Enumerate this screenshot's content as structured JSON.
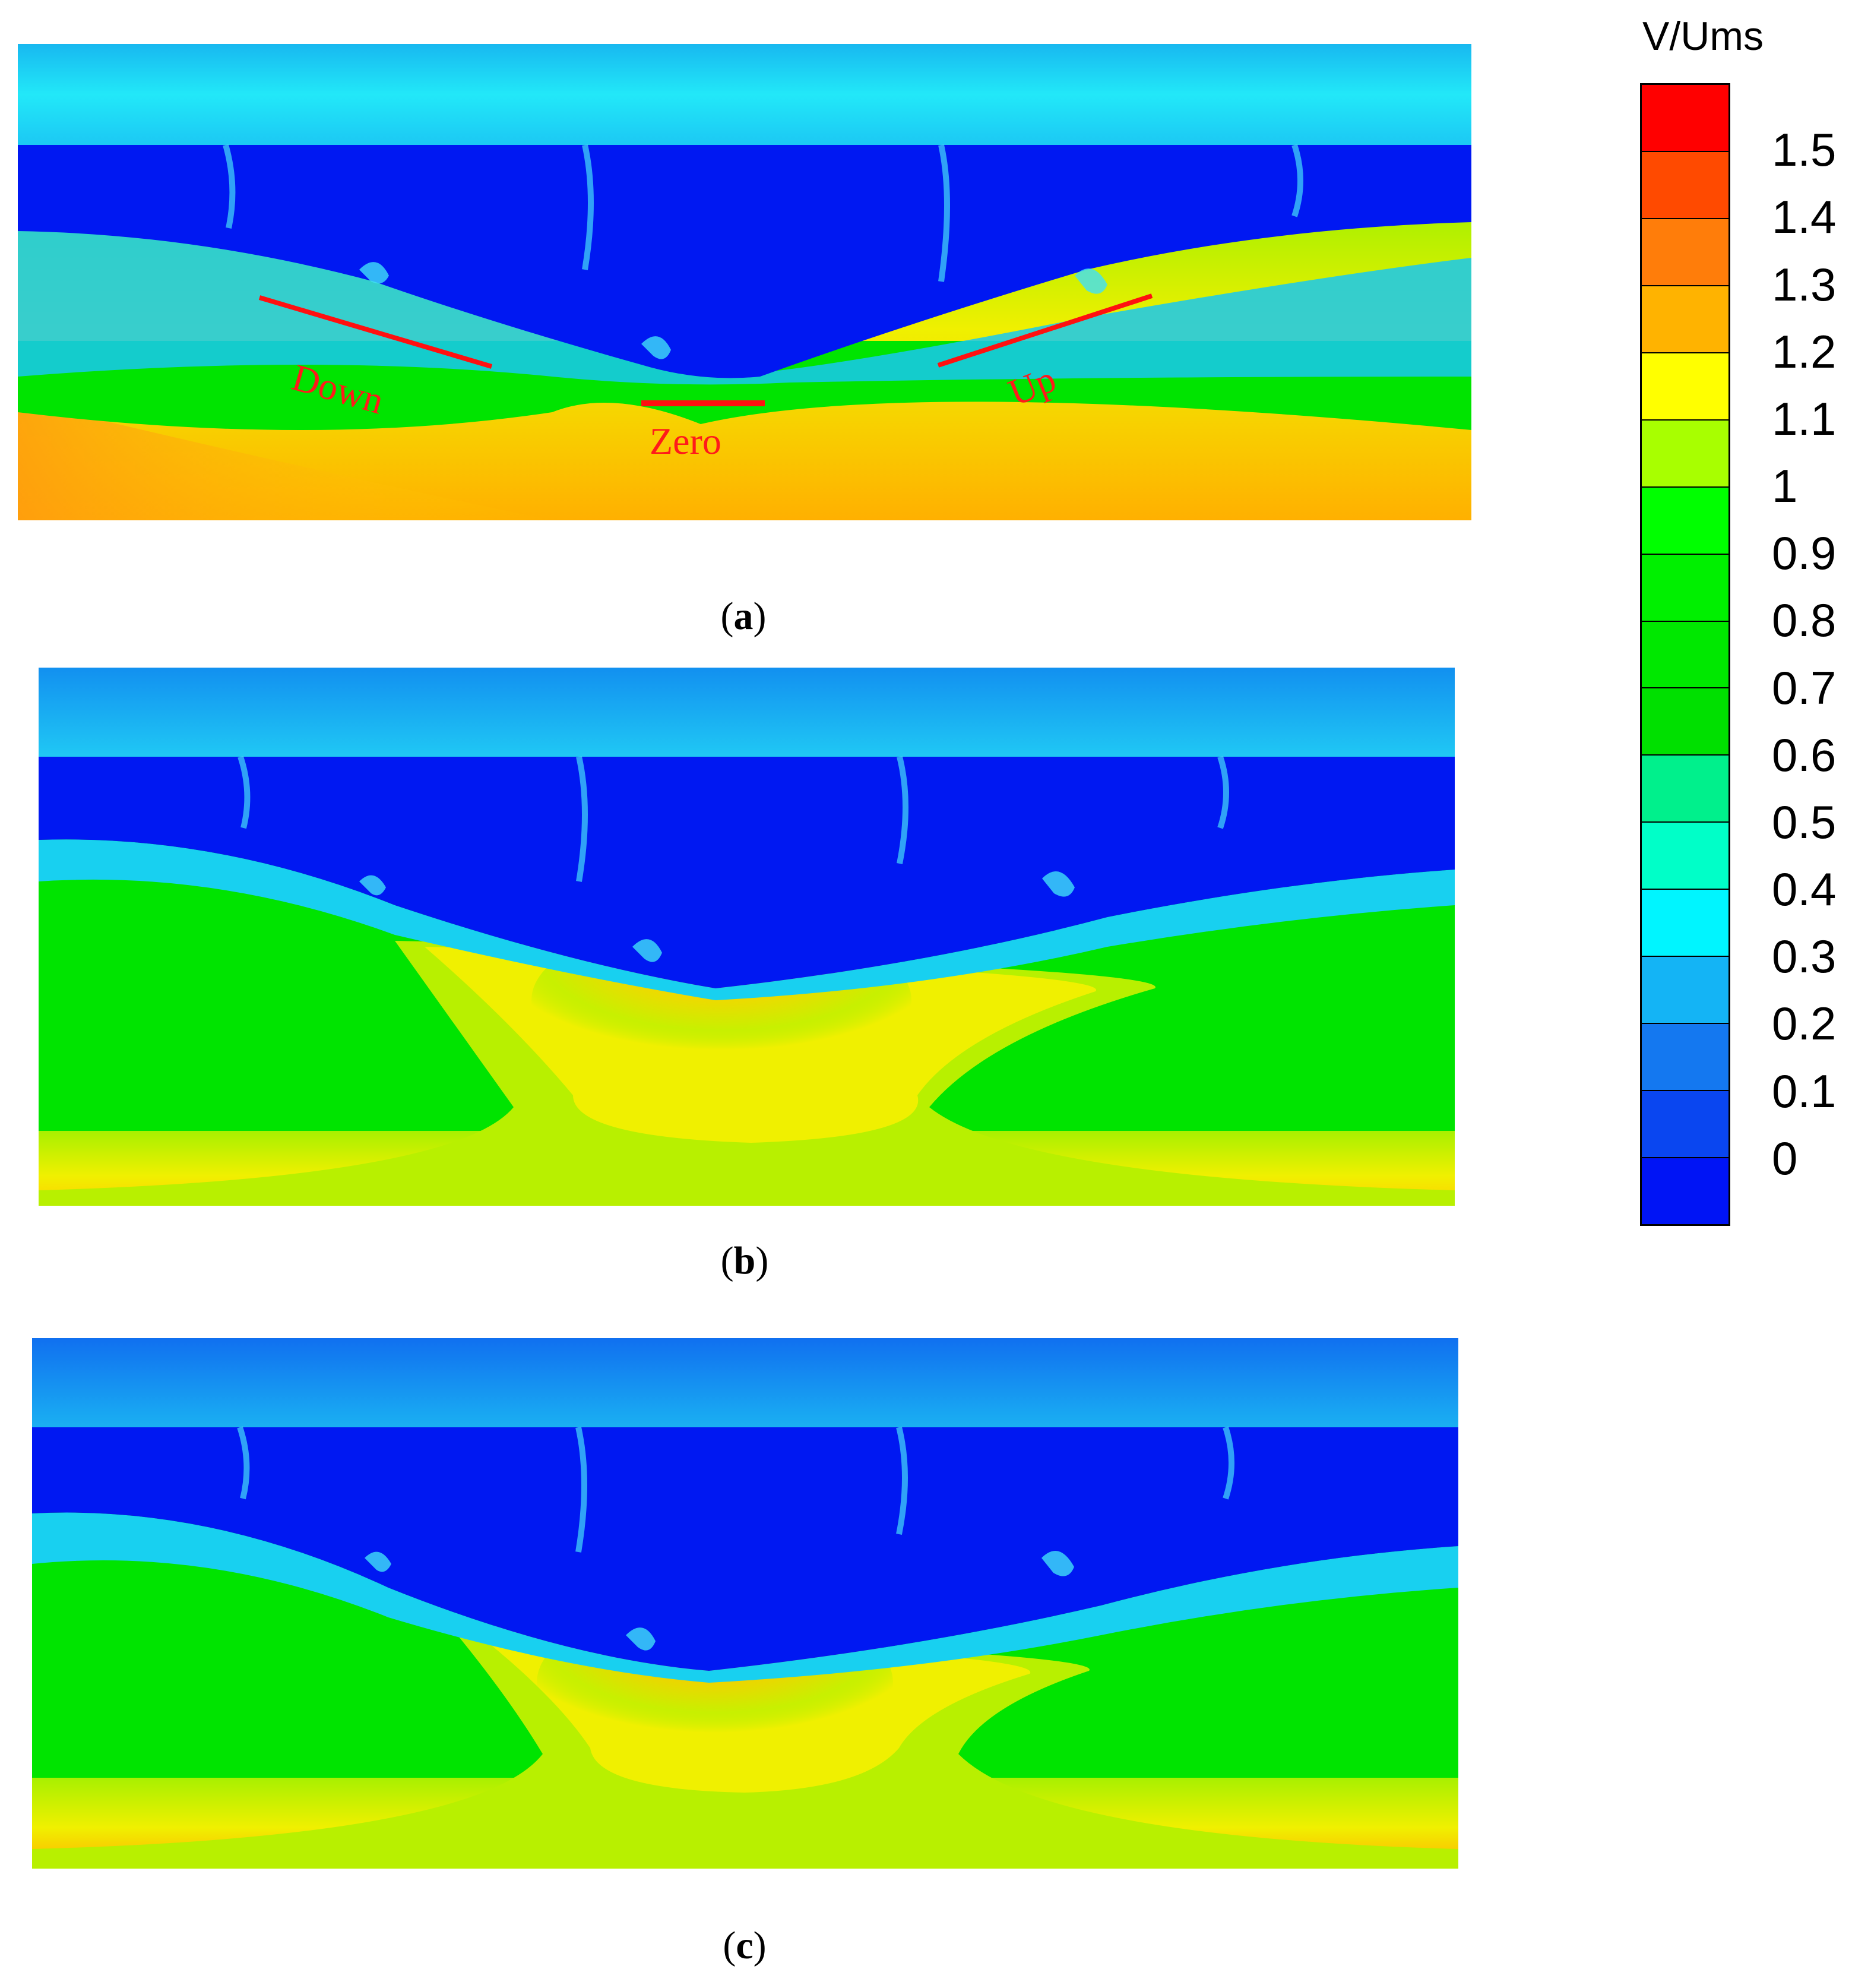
{
  "legend": {
    "title": "V/Ums",
    "labels": [
      "1.5",
      "1.4",
      "1.3",
      "1.2",
      "1.1",
      "1",
      "0.9",
      "0.8",
      "0.7",
      "0.6",
      "0.5",
      "0.4",
      "0.3",
      "0.2",
      "0.1",
      "0"
    ],
    "colors": [
      "#ff0000",
      "#ff4a00",
      "#ff7d0a",
      "#ffb300",
      "#ffff00",
      "#a8ff00",
      "#00ff00",
      "#00f000",
      "#00e800",
      "#00e000",
      "#00f08c",
      "#00ffc8",
      "#00f5ff",
      "#14b4f5",
      "#1478f0",
      "#0a46f0",
      "#0014f5"
    ]
  },
  "panels": [
    {
      "caption": "a",
      "annotations": [
        "Down",
        "Zero",
        "Up"
      ]
    },
    {
      "caption": "b"
    },
    {
      "caption": "c"
    }
  ]
}
